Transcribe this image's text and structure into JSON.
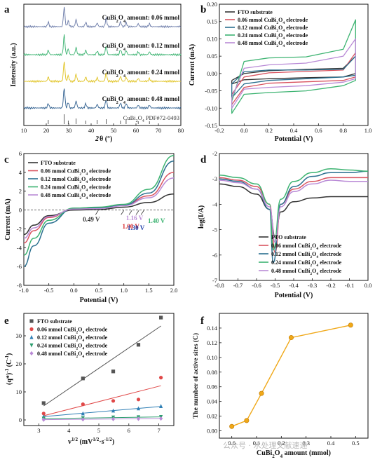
{
  "chart_data": [
    {
      "panel": "a",
      "type": "line",
      "xlabel": "2θ (°)",
      "ylabel": "Intensity (a.u.)",
      "xlim": [
        10,
        80
      ],
      "xticks": [
        10,
        20,
        30,
        40,
        50,
        60,
        70,
        80
      ],
      "series": [
        {
          "name": "CuBi2O4 amount: 0.06 mmol",
          "color": "#6a7aa8"
        },
        {
          "name": "CuBi2O4 amount: 0.12 mmol",
          "color": "#3cb371"
        },
        {
          "name": "CuBi2O4 amount: 0.24 mmol",
          "color": "#e0c21e"
        },
        {
          "name": "CuBi2O4 amount: 0.48 mmol",
          "color": "#2f5f8f"
        }
      ],
      "reference": "CuBi2O4 PDF#72-0493",
      "reference_peaks": [
        20.9,
        28.0,
        29.8,
        33.3,
        37.6,
        42.7,
        46.7,
        53.1,
        55.6,
        61.0,
        66.0
      ]
    },
    {
      "panel": "b",
      "type": "line",
      "xlabel": "Potential (V)",
      "ylabel": "Current (mA)",
      "xlim": [
        -0.2,
        1.0
      ],
      "ylim": [
        -0.15,
        0.2
      ],
      "xticks": [
        -0.2,
        0.0,
        0.2,
        0.4,
        0.6,
        0.8,
        1.0
      ],
      "yticks": [
        -0.15,
        -0.1,
        -0.05,
        0.0,
        0.05,
        0.1,
        0.15,
        0.2
      ],
      "series": [
        {
          "name": "FTO substrate",
          "color": "#333333",
          "upper": [
            [
              -0.1,
              -0.02
            ],
            [
              0.0,
              0.0
            ],
            [
              0.2,
              0.008
            ],
            [
              0.5,
              0.012
            ],
            [
              0.8,
              0.015
            ],
            [
              0.9,
              0.05
            ]
          ],
          "lower": [
            [
              0.9,
              0.0
            ],
            [
              0.8,
              -0.01
            ],
            [
              0.5,
              -0.012
            ],
            [
              0.2,
              -0.015
            ],
            [
              0.0,
              -0.018
            ],
            [
              -0.1,
              -0.03
            ]
          ]
        },
        {
          "name": "0.06 mmol CuBi2O4 electrode",
          "color": "#d9535f",
          "upper": [
            [
              -0.1,
              -0.06
            ],
            [
              0.0,
              -0.01
            ],
            [
              0.2,
              0.002
            ],
            [
              0.5,
              0.006
            ],
            [
              0.8,
              0.01
            ],
            [
              0.9,
              0.06
            ]
          ],
          "lower": [
            [
              0.9,
              -0.01
            ],
            [
              0.8,
              -0.02
            ],
            [
              0.5,
              -0.024
            ],
            [
              0.2,
              -0.028
            ],
            [
              0.0,
              -0.04
            ],
            [
              -0.1,
              -0.09
            ]
          ]
        },
        {
          "name": "0.12 mmol CuBi2O4 electrode",
          "color": "#2a6f8f",
          "upper": [
            [
              -0.1,
              -0.03
            ],
            [
              0.0,
              0.005
            ],
            [
              0.2,
              0.01
            ],
            [
              0.5,
              0.01
            ],
            [
              0.8,
              0.012
            ],
            [
              0.9,
              0.05
            ]
          ],
          "lower": [
            [
              0.9,
              -0.005
            ],
            [
              0.8,
              -0.01
            ],
            [
              0.5,
              -0.015
            ],
            [
              0.2,
              -0.02
            ],
            [
              0.0,
              -0.03
            ],
            [
              -0.1,
              -0.07
            ]
          ]
        },
        {
          "name": "0.24 mmol CuBi2O4 electrode",
          "color": "#3cb371",
          "upper": [
            [
              -0.1,
              -0.08
            ],
            [
              0.0,
              0.035
            ],
            [
              0.2,
              0.045
            ],
            [
              0.5,
              0.048
            ],
            [
              0.8,
              0.07
            ],
            [
              0.9,
              0.155
            ]
          ],
          "lower": [
            [
              0.9,
              -0.02
            ],
            [
              0.8,
              -0.035
            ],
            [
              0.5,
              -0.05
            ],
            [
              0.2,
              -0.055
            ],
            [
              0.0,
              -0.06
            ],
            [
              -0.1,
              -0.115
            ]
          ]
        },
        {
          "name": "0.48 mmol CuBi2O4 electrode",
          "color": "#b98ad6",
          "upper": [
            [
              -0.1,
              -0.07
            ],
            [
              0.0,
              0.015
            ],
            [
              0.2,
              0.025
            ],
            [
              0.5,
              0.03
            ],
            [
              0.8,
              0.05
            ],
            [
              0.9,
              0.1
            ]
          ],
          "lower": [
            [
              0.9,
              -0.015
            ],
            [
              0.8,
              -0.025
            ],
            [
              0.5,
              -0.035
            ],
            [
              0.2,
              -0.04
            ],
            [
              0.0,
              -0.045
            ],
            [
              -0.1,
              -0.1
            ]
          ]
        }
      ]
    },
    {
      "panel": "c",
      "type": "line",
      "xlabel": "Potential (V)",
      "ylabel": "Current (mA)",
      "xlim": [
        -1.0,
        2.0
      ],
      "ylim": [
        -8,
        6
      ],
      "xticks": [
        -1.0,
        -0.5,
        0.0,
        0.5,
        1.0,
        1.5,
        2.0
      ],
      "yticks": [
        -8,
        -6,
        -4,
        -2,
        0,
        2,
        4,
        6
      ],
      "series": [
        {
          "name": "FTO substrate",
          "color": "#333333",
          "points": [
            [
              -1.0,
              -2.6
            ],
            [
              -0.8,
              -1.6
            ],
            [
              -0.5,
              -0.6
            ],
            [
              0.0,
              0.0
            ],
            [
              0.5,
              0.05
            ],
            [
              1.0,
              0.3
            ],
            [
              1.5,
              0.8
            ],
            [
              2.0,
              1.7
            ]
          ]
        },
        {
          "name": "0.06 mmol CuBi2O4 electrode",
          "color": "#d9535f",
          "points": [
            [
              -1.0,
              -3.5
            ],
            [
              -0.8,
              -2.2
            ],
            [
              -0.5,
              -0.8
            ],
            [
              0.0,
              0.15
            ],
            [
              0.5,
              0.2
            ],
            [
              1.0,
              0.5
            ],
            [
              1.5,
              1.5
            ],
            [
              2.0,
              4.0
            ]
          ]
        },
        {
          "name": "0.12 mmol CuBi2O4 electrode",
          "color": "#2a6f8f",
          "points": [
            [
              -1.0,
              -6.0
            ],
            [
              -0.8,
              -3.8
            ],
            [
              -0.5,
              -1.4
            ],
            [
              0.0,
              0.2
            ],
            [
              0.5,
              0.25
            ],
            [
              1.0,
              0.5
            ],
            [
              1.5,
              1.8
            ],
            [
              2.0,
              5.2
            ]
          ]
        },
        {
          "name": "0.24 mmol CuBi2O4 electrode",
          "color": "#3cb371",
          "points": [
            [
              -1.0,
              -4.8
            ],
            [
              -0.8,
              -3.0
            ],
            [
              -0.5,
              -1.1
            ],
            [
              0.0,
              0.2
            ],
            [
              0.5,
              0.3
            ],
            [
              1.0,
              0.6
            ],
            [
              1.5,
              2.2
            ],
            [
              2.0,
              5.8
            ]
          ]
        },
        {
          "name": "0.48 mmol CuBi2O4 electrode",
          "color": "#b98ad6",
          "points": [
            [
              -1.0,
              -3.0
            ],
            [
              -0.8,
              -1.9
            ],
            [
              -0.5,
              -0.7
            ],
            [
              0.0,
              0.1
            ],
            [
              0.5,
              0.15
            ],
            [
              1.0,
              0.45
            ],
            [
              1.5,
              1.3
            ],
            [
              2.0,
              3.4
            ]
          ]
        }
      ],
      "annotations": [
        {
          "text": "0.49 V",
          "color": "#333333",
          "x": 0.49
        },
        {
          "text": "1.00 V",
          "color": "#d62728",
          "x": 1.0
        },
        {
          "text": "1.16 V",
          "color": "#b98ad6",
          "x": 1.16
        },
        {
          "text": "1.30 V",
          "color": "#1f3fa8",
          "x": 1.3
        },
        {
          "text": "1.40 V",
          "color": "#3cb371",
          "x": 1.4
        }
      ]
    },
    {
      "panel": "d",
      "type": "line",
      "xlabel": "Potential (V)",
      "ylabel": "log(I/A)",
      "xlim": [
        -0.8,
        0.0
      ],
      "ylim": [
        -7,
        -2
      ],
      "xticks": [
        -0.8,
        -0.7,
        -0.6,
        -0.5,
        -0.4,
        -0.3,
        -0.2,
        -0.1,
        0.0
      ],
      "yticks": [
        -7,
        -6,
        -5,
        -4,
        -3,
        -2
      ],
      "series": [
        {
          "name": "FTO substrate",
          "color": "#333333",
          "points": [
            [
              -0.8,
              -3.2
            ],
            [
              -0.7,
              -3.3
            ],
            [
              -0.6,
              -3.6
            ],
            [
              -0.53,
              -4.2
            ],
            [
              -0.5,
              -5.3
            ],
            [
              -0.47,
              -4.3
            ],
            [
              -0.4,
              -3.9
            ],
            [
              -0.3,
              -3.75
            ],
            [
              -0.2,
              -3.7
            ],
            [
              -0.1,
              -3.7
            ],
            [
              0.0,
              -3.7
            ]
          ]
        },
        {
          "name": "0.06 mmol CuBi2O4 electrode",
          "color": "#d9535f",
          "points": [
            [
              -0.8,
              -2.95
            ],
            [
              -0.7,
              -3.05
            ],
            [
              -0.6,
              -3.3
            ],
            [
              -0.53,
              -4.0
            ],
            [
              -0.5,
              -5.9
            ],
            [
              -0.47,
              -4.0
            ],
            [
              -0.4,
              -3.4
            ],
            [
              -0.3,
              -3.1
            ],
            [
              -0.2,
              -2.95
            ],
            [
              -0.1,
              -2.95
            ],
            [
              0.0,
              -2.95
            ]
          ]
        },
        {
          "name": "0.12 mmol CuBi2O4 electrode",
          "color": "#2a6f8f",
          "points": [
            [
              -0.8,
              -3.0
            ],
            [
              -0.7,
              -3.1
            ],
            [
              -0.6,
              -3.4
            ],
            [
              -0.53,
              -4.2
            ],
            [
              -0.51,
              -6.3
            ],
            [
              -0.47,
              -4.0
            ],
            [
              -0.4,
              -3.3
            ],
            [
              -0.3,
              -2.9
            ],
            [
              -0.2,
              -2.75
            ],
            [
              -0.1,
              -2.75
            ],
            [
              0.0,
              -2.7
            ]
          ]
        },
        {
          "name": "0.24 mmol CuBi2O4 electrode",
          "color": "#3cb371",
          "points": [
            [
              -0.8,
              -2.85
            ],
            [
              -0.7,
              -2.95
            ],
            [
              -0.6,
              -3.2
            ],
            [
              -0.53,
              -4.0
            ],
            [
              -0.51,
              -5.8
            ],
            [
              -0.47,
              -3.8
            ],
            [
              -0.4,
              -3.1
            ],
            [
              -0.3,
              -2.75
            ],
            [
              -0.2,
              -2.6
            ],
            [
              -0.1,
              -2.65
            ],
            [
              0.0,
              -2.7
            ]
          ]
        },
        {
          "name": "0.48 mmol CuBi2O4 electrode",
          "color": "#b98ad6",
          "points": [
            [
              -0.8,
              -3.05
            ],
            [
              -0.7,
              -3.15
            ],
            [
              -0.6,
              -3.4
            ],
            [
              -0.53,
              -4.1
            ],
            [
              -0.5,
              -5.5
            ],
            [
              -0.47,
              -4.1
            ],
            [
              -0.4,
              -3.5
            ],
            [
              -0.3,
              -3.2
            ],
            [
              -0.2,
              -3.05
            ],
            [
              -0.1,
              -3.1
            ],
            [
              0.0,
              -3.1
            ]
          ]
        }
      ]
    },
    {
      "panel": "e",
      "type": "scatter",
      "xlabel": "v1/2 (mV1/2·s-1/2)",
      "ylabel": "(q*)-1 (C-1)",
      "xlim": [
        2.5,
        7.5
      ],
      "ylim": [
        -2,
        38
      ],
      "xticks": [
        3,
        4,
        5,
        6,
        7
      ],
      "yticks": [
        0,
        10,
        20,
        30
      ],
      "x": [
        3.16,
        4.47,
        5.48,
        6.32,
        7.07
      ],
      "series": [
        {
          "name": "FTO substrate",
          "color": "#555555",
          "marker": "square",
          "values": [
            6.0,
            14.8,
            17.3,
            26.8,
            36.5
          ],
          "fit": [
            [
              3.16,
              5.0
            ],
            [
              7.07,
              33.5
            ]
          ]
        },
        {
          "name": "0.06 mmol CuBi2O4 electrode",
          "color": "#e04848",
          "marker": "circle",
          "values": [
            2.3,
            5.6,
            6.8,
            7.3,
            15.1
          ],
          "fit": [
            [
              3.16,
              1.5
            ],
            [
              7.07,
              12.2
            ]
          ]
        },
        {
          "name": "0.12 mmol CuBi2O4 electrode",
          "color": "#2f7fb5",
          "marker": "triangle",
          "values": [
            1.2,
            2.3,
            3.3,
            4.1,
            4.9
          ],
          "fit": [
            [
              3.16,
              1.2
            ],
            [
              7.07,
              4.8
            ]
          ]
        },
        {
          "name": "0.24 mmol CuBi2O4 electrode",
          "color": "#2e9e6f",
          "marker": "triangle-down",
          "values": [
            0.5,
            0.7,
            0.9,
            1.0,
            1.1
          ],
          "fit": [
            [
              3.16,
              0.45
            ],
            [
              7.07,
              1.1
            ]
          ]
        },
        {
          "name": "0.48 mmol CuBi2O4 electrode",
          "color": "#b98ad6",
          "marker": "diamond",
          "values": [
            0.1,
            0.2,
            0.3,
            0.4,
            0.5
          ],
          "fit": [
            [
              3.16,
              0.1
            ],
            [
              7.07,
              0.5
            ]
          ]
        }
      ]
    },
    {
      "panel": "f",
      "type": "line",
      "xlabel": "CuBi2O4 amount (mmol)",
      "ylabel": "The number of active sites (C)",
      "xlim": [
        -0.05,
        0.55
      ],
      "ylim": [
        -0.01,
        0.16
      ],
      "xticks": [
        0.0,
        0.1,
        0.2,
        0.3,
        0.4,
        0.5
      ],
      "yticks": [
        0.0,
        0.02,
        0.04,
        0.06,
        0.08,
        0.1,
        0.12,
        0.14
      ],
      "series": [
        {
          "name": "",
          "color": "#f0a818",
          "points": [
            [
              0.0,
              0.006
            ],
            [
              0.06,
              0.014
            ],
            [
              0.12,
              0.051
            ],
            [
              0.24,
              0.127
            ],
            [
              0.48,
              0.144
            ]
          ]
        }
      ]
    }
  ],
  "panel_labels": {
    "a": "a",
    "b": "b",
    "c": "c",
    "d": "d",
    "e": "e",
    "f": "f"
  },
  "watermark": "公众号 · 水处理文献速递"
}
